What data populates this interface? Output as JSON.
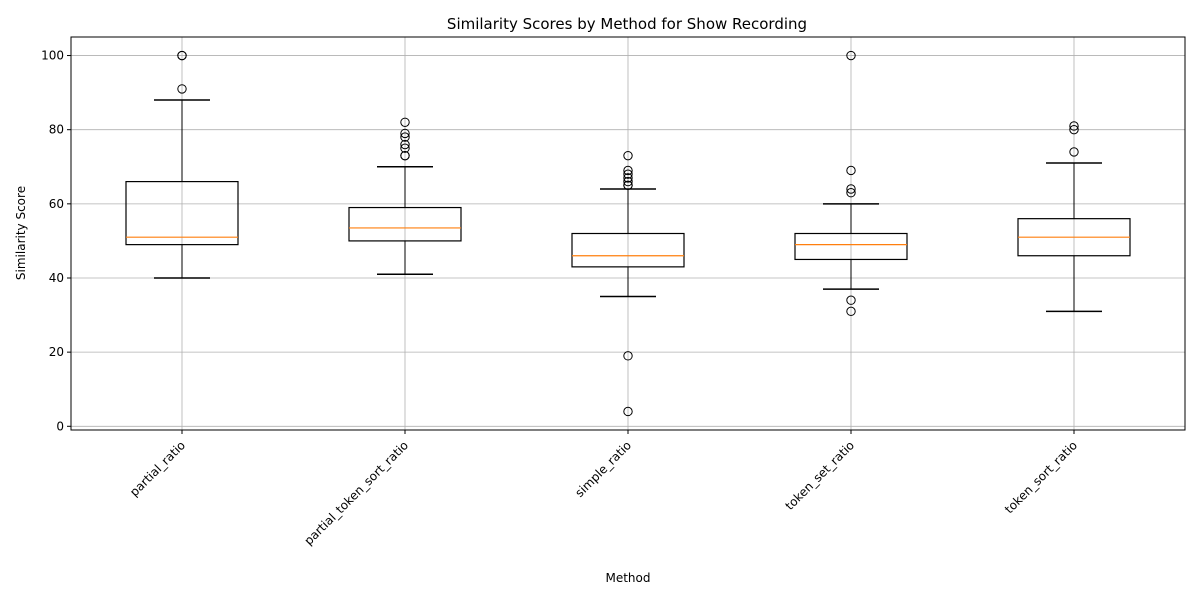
{
  "chart_data": {
    "type": "box",
    "title": "Similarity Scores by Method for Show Recording",
    "xlabel": "Method",
    "ylabel": "Similarity Score",
    "ylim": [
      -1,
      105
    ],
    "yticks": [
      0,
      20,
      40,
      60,
      80,
      100
    ],
    "grid": true,
    "median_color": "#ff7f0e",
    "categories": [
      "partial_ratio",
      "partial_token_sort_ratio",
      "simple_ratio",
      "token_set_ratio",
      "token_sort_ratio"
    ],
    "boxes": [
      {
        "category": "partial_ratio",
        "whisker_low": 40,
        "q1": 49,
        "median": 51,
        "q3": 66,
        "whisker_high": 88,
        "outliers": [
          91,
          100,
          100
        ]
      },
      {
        "category": "partial_token_sort_ratio",
        "whisker_low": 41,
        "q1": 50,
        "median": 53.5,
        "q3": 59,
        "whisker_high": 70,
        "outliers": [
          73,
          73,
          75,
          76,
          78,
          79,
          82
        ]
      },
      {
        "category": "simple_ratio",
        "whisker_low": 35,
        "q1": 43,
        "median": 46,
        "q3": 52,
        "whisker_high": 64,
        "outliers": [
          4,
          19,
          65,
          65,
          66,
          67,
          68,
          69,
          73
        ]
      },
      {
        "category": "token_set_ratio",
        "whisker_low": 37,
        "q1": 45,
        "median": 49,
        "q3": 52,
        "whisker_high": 60,
        "outliers": [
          31,
          34,
          63,
          64,
          69,
          100
        ]
      },
      {
        "category": "token_sort_ratio",
        "whisker_low": 31,
        "q1": 46,
        "median": 51,
        "q3": 56,
        "whisker_high": 71,
        "outliers": [
          74,
          80,
          81
        ]
      }
    ]
  }
}
